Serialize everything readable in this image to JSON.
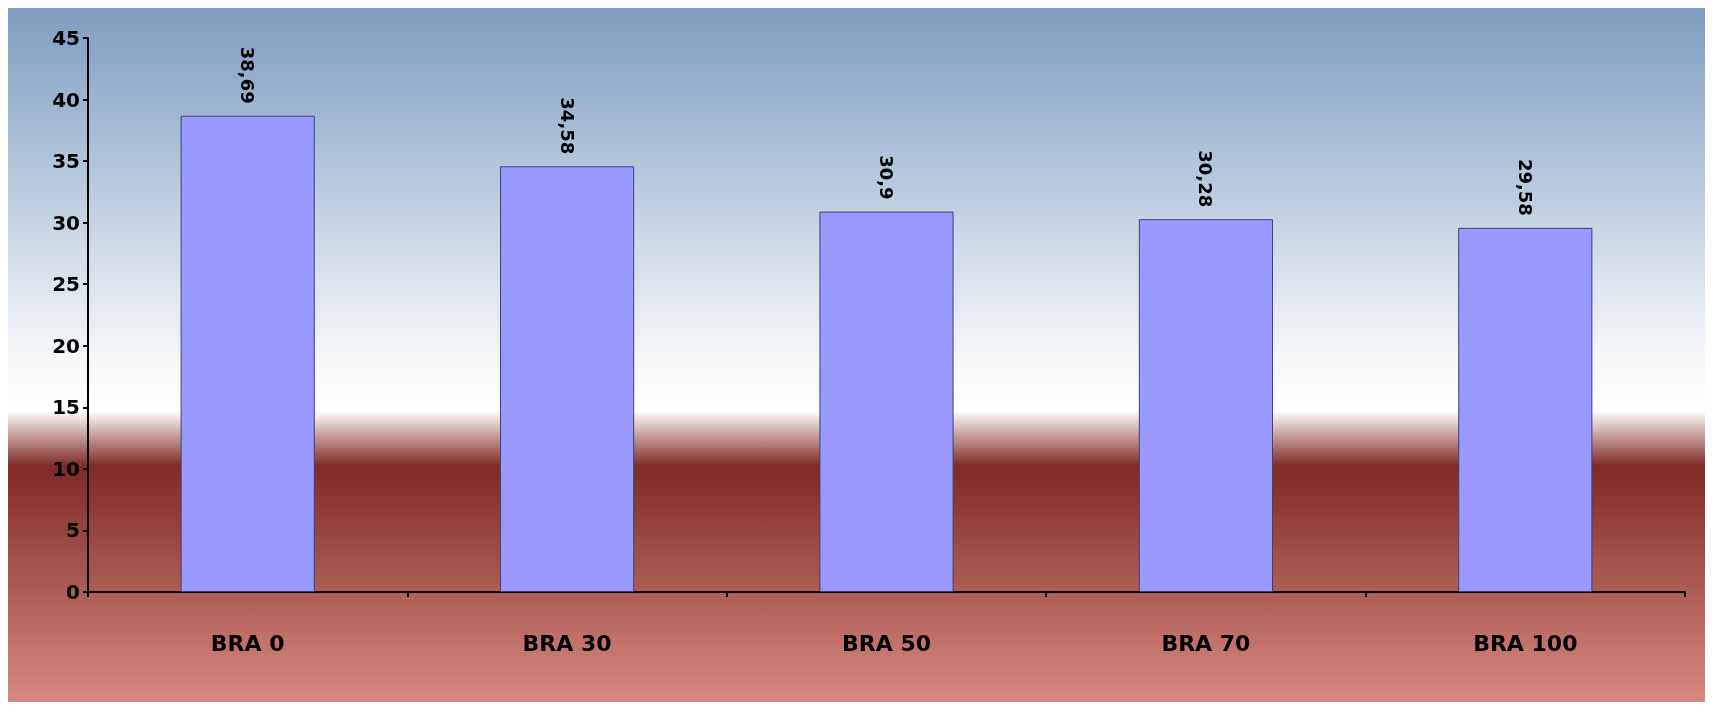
{
  "chart_data": {
    "type": "bar",
    "categories": [
      "BRA 0",
      "BRA 30",
      "BRA 50",
      "BRA 70",
      "BRA 100"
    ],
    "values": [
      38.69,
      34.58,
      30.9,
      30.28,
      29.58
    ],
    "value_labels": [
      "38,69",
      "34,58",
      "30,9",
      "30,28",
      "29,58"
    ],
    "color": "#9999ff",
    "ylim": [
      0,
      45
    ],
    "yticks": [
      0,
      5,
      10,
      15,
      20,
      25,
      30,
      35,
      40,
      45
    ],
    "grid": false
  }
}
